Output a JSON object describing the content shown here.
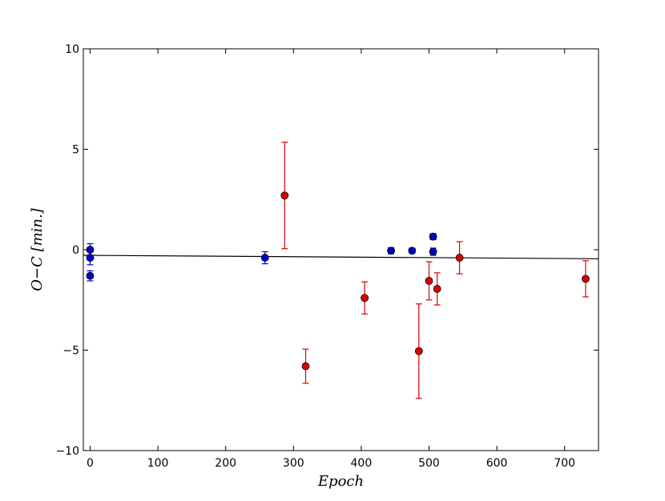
{
  "chart_data": {
    "type": "scatter",
    "xlabel": "Epoch",
    "ylabel": "O−C [min.]",
    "xlim": [
      -10,
      750
    ],
    "ylim": [
      -10,
      10
    ],
    "xticks": [
      0,
      100,
      200,
      300,
      400,
      500,
      600,
      700
    ],
    "yticks": [
      -10,
      -5,
      0,
      5,
      10
    ],
    "grid": false,
    "series": [
      {
        "color": "#0000cc",
        "points": [
          {
            "x": 0,
            "y": 0.0,
            "err": 0.3
          },
          {
            "x": 0,
            "y": -0.4,
            "err": 0.35
          },
          {
            "x": 0,
            "y": -1.3,
            "err": 0.25
          },
          {
            "x": 258,
            "y": -0.4,
            "err": 0.3
          },
          {
            "x": 444,
            "y": -0.05,
            "err": 0.15
          },
          {
            "x": 475,
            "y": -0.05,
            "err": 0.12
          },
          {
            "x": 506,
            "y": 0.65,
            "err": 0.15
          },
          {
            "x": 506,
            "y": -0.1,
            "err": 0.18
          }
        ]
      },
      {
        "color": "#dd0000",
        "points": [
          {
            "x": 287,
            "y": 2.7,
            "err": 2.65
          },
          {
            "x": 318,
            "y": -5.8,
            "err": 0.85
          },
          {
            "x": 405,
            "y": -2.4,
            "err": 0.8
          },
          {
            "x": 485,
            "y": -5.05,
            "err": 2.35
          },
          {
            "x": 500,
            "y": -1.55,
            "err": 0.95
          },
          {
            "x": 512,
            "y": -1.95,
            "err": 0.8
          },
          {
            "x": 545,
            "y": -0.4,
            "err": 0.8
          },
          {
            "x": 731,
            "y": -1.45,
            "err": 0.9
          }
        ]
      }
    ],
    "fit_line": {
      "x": [
        -10,
        750
      ],
      "y": [
        -0.28,
        -0.45
      ]
    }
  }
}
